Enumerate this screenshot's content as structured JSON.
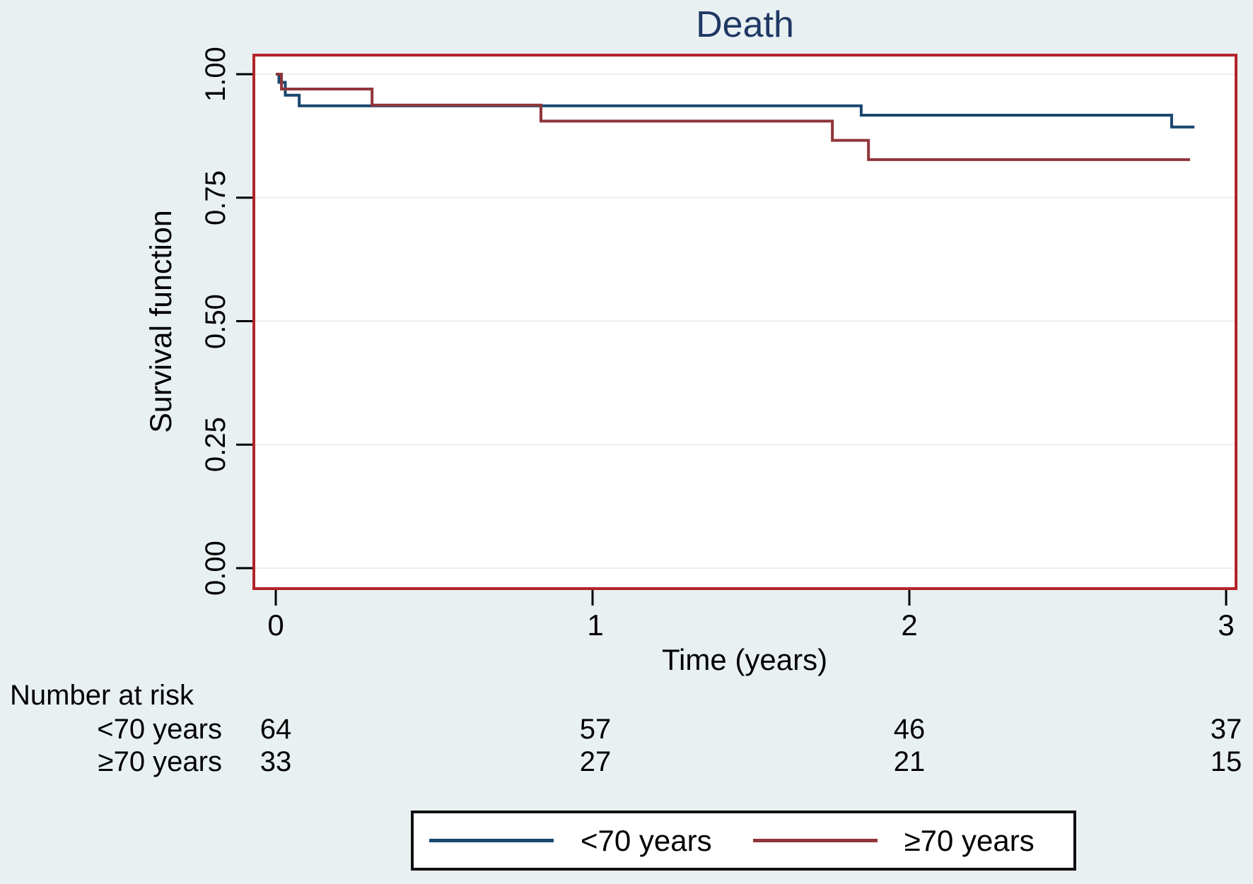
{
  "title": "Death",
  "axes": {
    "ylabel": "Survival function",
    "xlabel": "Time (years)",
    "yticks": [
      "1.00",
      "0.75",
      "0.50",
      "0.25",
      "0.00"
    ],
    "xticks": [
      "0",
      "1",
      "2",
      "3"
    ]
  },
  "colors": {
    "background": "#e9f0f2",
    "plot_background": "#ffffff",
    "plot_border": "#b3232a",
    "gridline": "#e9eff1",
    "tick": "#000000",
    "title_text": "#1f3864",
    "series_under70": "#1a476f",
    "series_over70": "#90353b",
    "legend_border": "#111111"
  },
  "chart_data": {
    "type": "line",
    "subtype": "kaplan-meier-step",
    "title": "Death",
    "xlabel": "Time (years)",
    "ylabel": "Survival function",
    "xlim": [
      0,
      3
    ],
    "ylim": [
      0,
      1
    ],
    "xtick_values": [
      0,
      1,
      2,
      3
    ],
    "ytick_values": [
      1.0,
      0.75,
      0.5,
      0.25,
      0.0
    ],
    "grid": true,
    "legend_position": "bottom",
    "series": [
      {
        "name": "<70 years",
        "color": "#1a476f",
        "steps": [
          [
            0.0,
            1.0
          ],
          [
            0.01,
            1.0
          ],
          [
            0.01,
            0.9835
          ],
          [
            0.03,
            0.9835
          ],
          [
            0.03,
            0.9575
          ],
          [
            0.074,
            0.9575
          ],
          [
            0.074,
            0.936
          ],
          [
            1.848,
            0.936
          ],
          [
            1.848,
            0.917
          ],
          [
            2.828,
            0.917
          ],
          [
            2.828,
            0.893
          ],
          [
            2.9,
            0.893
          ]
        ]
      },
      {
        "name": "≥70 years",
        "color": "#90353b",
        "steps": [
          [
            0.0,
            1.0
          ],
          [
            0.018,
            1.0
          ],
          [
            0.018,
            0.97
          ],
          [
            0.304,
            0.97
          ],
          [
            0.304,
            0.9375
          ],
          [
            0.837,
            0.9375
          ],
          [
            0.837,
            0.905
          ],
          [
            1.757,
            0.905
          ],
          [
            1.757,
            0.866
          ],
          [
            1.871,
            0.866
          ],
          [
            1.871,
            0.827
          ],
          [
            2.886,
            0.827
          ]
        ]
      }
    ]
  },
  "risk_table": {
    "title": "Number at risk",
    "rows": [
      {
        "label": "<70 years",
        "values": [
          "64",
          "57",
          "46",
          "37"
        ]
      },
      {
        "label": "≥70 years",
        "values": [
          "33",
          "27",
          "21",
          "15"
        ]
      }
    ]
  },
  "legend": {
    "entries": [
      {
        "label": "<70 years",
        "color": "#1a476f"
      },
      {
        "label": "≥70 years",
        "color": "#90353b"
      }
    ]
  }
}
